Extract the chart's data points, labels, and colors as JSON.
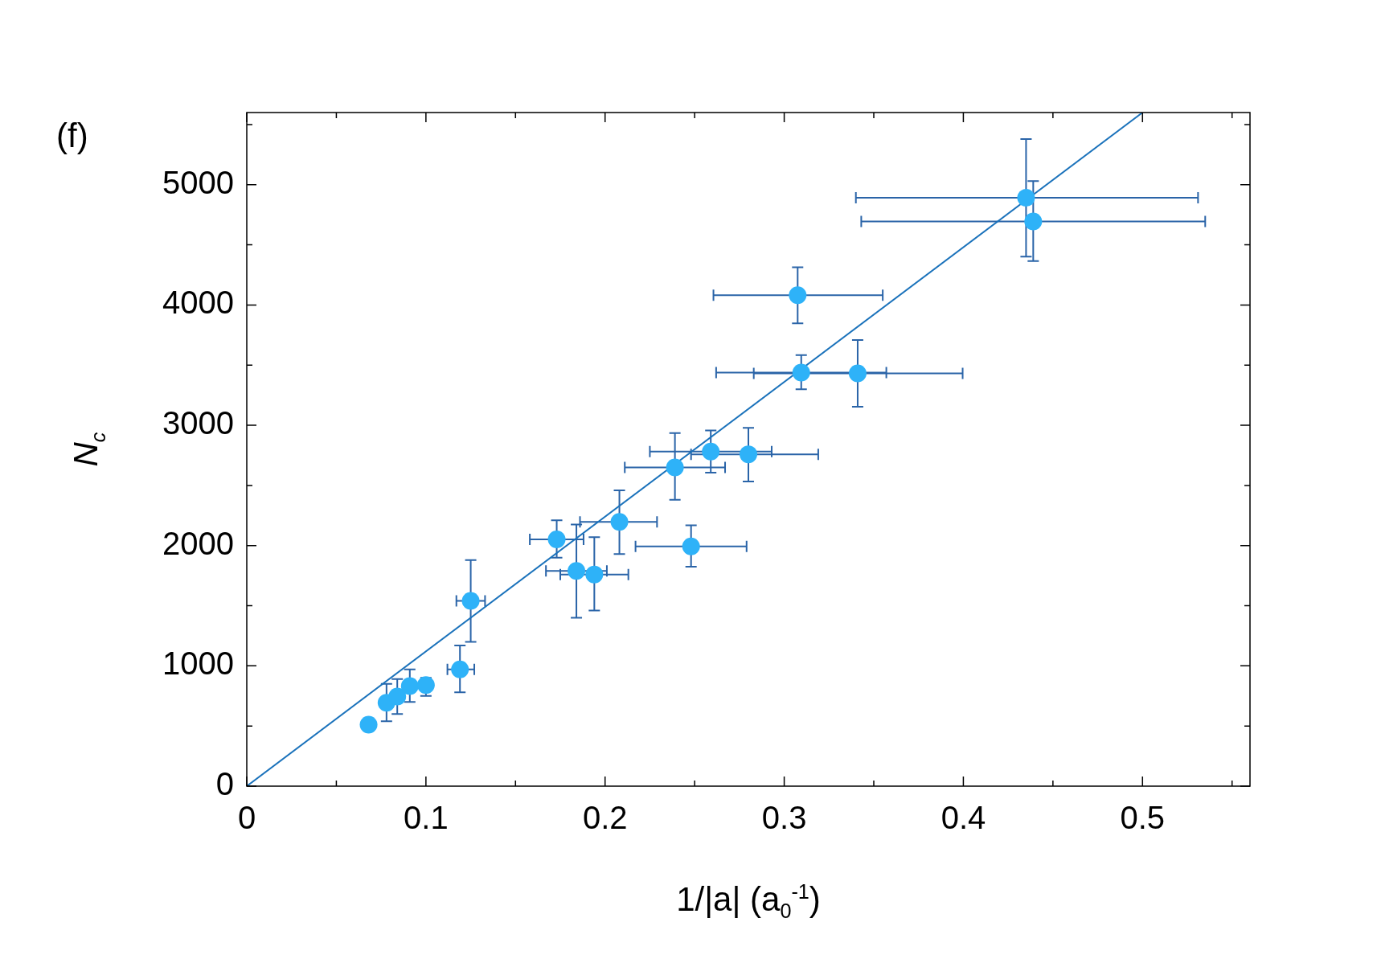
{
  "chart_data": {
    "type": "scatter",
    "xlabel": "1/|a| (a$_{0}$$^{-1}$)",
    "ylabel": "N$_{c}$",
    "annotations": [
      "(f)"
    ],
    "xlim": [
      0,
      0.56
    ],
    "ylim": [
      0,
      5600
    ],
    "xticks": [
      0,
      {
        "value": 0.05,
        "label": null
      },
      0.1,
      {
        "value": 0.15,
        "label": null
      },
      0.2,
      {
        "value": 0.25,
        "label": null
      },
      0.3,
      {
        "value": 0.35,
        "label": null
      },
      0.4,
      {
        "value": 0.45,
        "label": null
      },
      0.5,
      {
        "value": 0.55,
        "label": null
      }
    ],
    "yticks": [
      0,
      {
        "value": 500,
        "label": null
      },
      1000,
      {
        "value": 1500,
        "label": null
      },
      2000,
      {
        "value": 2500,
        "label": null
      },
      3000,
      {
        "value": 3500,
        "label": null
      },
      4000,
      {
        "value": 4500,
        "label": null
      },
      5000,
      {
        "value": 5500,
        "label": null
      }
    ],
    "grid": false,
    "legend": false,
    "marker": "circle",
    "series": [
      {
        "color": "#2eb2f8",
        "x": [
          0.068,
          0.078,
          0.084,
          0.091,
          0.1,
          0.119,
          0.125,
          0.173,
          0.184,
          0.194,
          0.208,
          0.239,
          0.248,
          0.259,
          0.28,
          0.3075,
          0.3095,
          0.341,
          0.435,
          0.439
        ],
        "values": [
          511,
          693,
          745,
          832,
          840,
          971,
          1540,
          2051,
          1789,
          1760,
          2197,
          2650,
          1993,
          2781,
          2759,
          4081,
          3438,
          3431,
          4891,
          4694
        ],
        "errors": [
          null,
          [
            540,
            850
          ],
          [
            600,
            890
          ],
          [
            700,
            970
          ],
          [
            750,
            900
          ],
          [
            780,
            1170
          ],
          [
            1200,
            1880
          ],
          [
            1900,
            2210
          ],
          [
            1400,
            2175
          ],
          [
            1460,
            2070
          ],
          [
            1930,
            2460
          ],
          [
            2380,
            2935
          ],
          [
            1825,
            2168
          ],
          [
            2606,
            2957
          ],
          [
            2533,
            2978
          ],
          [
            3847,
            4314
          ],
          [
            3300,
            3584
          ],
          [
            3154,
            3708
          ],
          [
            4402,
            5380
          ],
          [
            4365,
            5030
          ]
        ],
        "xerrors": [
          null,
          null,
          null,
          null,
          null,
          [
            0.112,
            0.127
          ],
          [
            0.117,
            0.133
          ],
          [
            0.158,
            0.188
          ],
          [
            0.167,
            0.201
          ],
          [
            0.175,
            0.213
          ],
          [
            0.186,
            0.229
          ],
          [
            0.211,
            0.267
          ],
          [
            0.217,
            0.279
          ],
          [
            0.225,
            0.293
          ],
          [
            0.248,
            0.319
          ],
          [
            0.2605,
            0.355
          ],
          [
            0.262,
            0.357
          ],
          [
            0.283,
            0.3996
          ],
          [
            0.34,
            0.531
          ],
          [
            0.343,
            0.535
          ]
        ]
      },
      {
        "type": "line",
        "color": "#1a72bb",
        "marker": "none",
        "x": [
          0,
          0.5
        ],
        "values": [
          0,
          5600
        ]
      }
    ]
  }
}
